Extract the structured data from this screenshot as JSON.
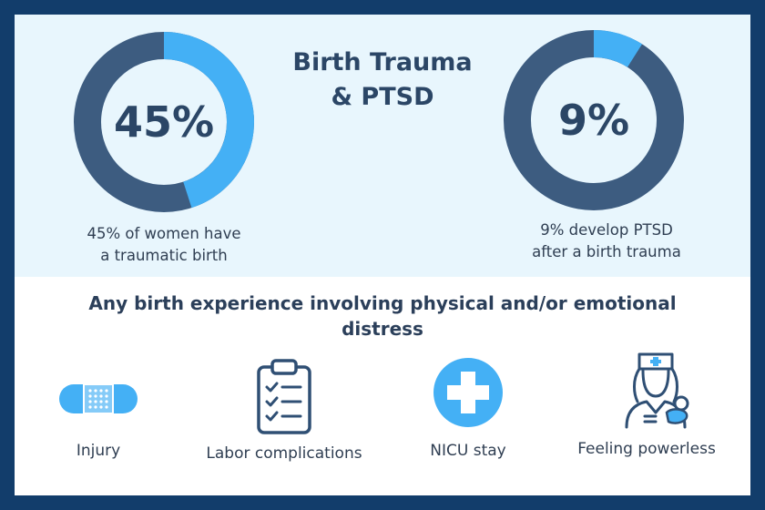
{
  "title": {
    "line1": "Birth Trauma",
    "line2": "& PTSD"
  },
  "stats": [
    {
      "value_label": "45%",
      "percent": 45,
      "caption_line1": "45% of women have",
      "caption_line2": "a traumatic birth"
    },
    {
      "value_label": "9%",
      "percent": 9,
      "caption_line1": "9% develop PTSD",
      "caption_line2": "after a birth trauma"
    }
  ],
  "colors": {
    "border": "#123d6b",
    "panel_background": "#e8f6fd",
    "donut_track": "#3d5c80",
    "donut_fill": "#44b0f5",
    "heading_text": "#2b4666"
  },
  "headline": {
    "line1": "Any birth experience involving physical and/or emotional",
    "line2": "distress"
  },
  "icons": [
    {
      "icon": "bandage-icon",
      "label": "Injury"
    },
    {
      "icon": "clipboard-checklist-icon",
      "label": "Labor complications"
    },
    {
      "icon": "medical-cross-icon",
      "label": "NICU stay"
    },
    {
      "icon": "nurse-with-baby-icon",
      "label": "Feeling powerless"
    }
  ]
}
